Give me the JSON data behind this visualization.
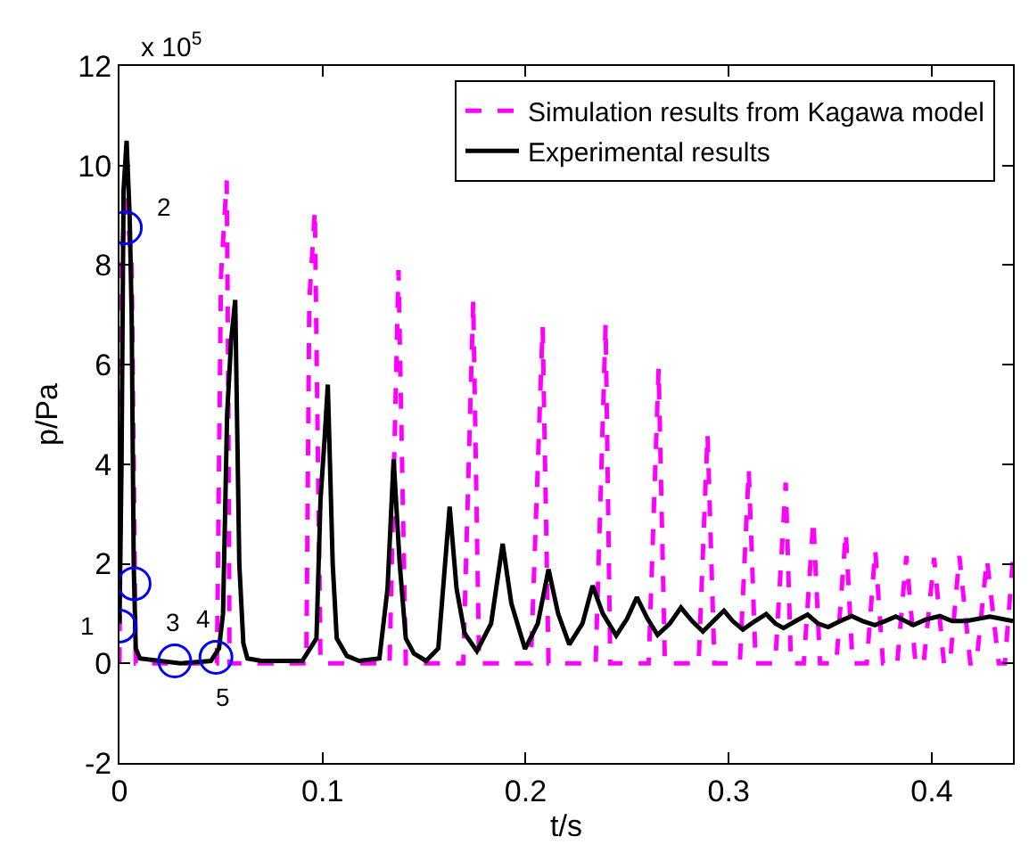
{
  "chart_data": {
    "type": "line",
    "xlabel": "t/s",
    "ylabel": "p/Pa",
    "xlim": [
      0,
      0.44
    ],
    "xticks": [
      0,
      0.1,
      0.2,
      0.3,
      0.4
    ],
    "ylim": [
      -2,
      12
    ],
    "yticks": [
      -2,
      0,
      2,
      4,
      6,
      8,
      10,
      12
    ],
    "grid": false,
    "legend": "top right",
    "marker": "none",
    "annotations": [
      "x 10$^{5}$",
      {
        "text": "1",
        "x": 0,
        "y": 0.75
      },
      {
        "text": "2",
        "x": 0.0029,
        "y": 8.75
      },
      {
        "text": "3",
        "x": 0.0072,
        "y": 1.6
      },
      {
        "text": "4",
        "x": 0.0272,
        "y": 0.05
      },
      {
        "text": "5",
        "x": 0.0475,
        "y": 0.12
      }
    ],
    "series": [
      {
        "name": "Simulation results from Kagawa model",
        "color": "#ff00ff",
        "line_style": "dashed",
        "x": [
          0,
          0.001,
          0.003,
          0.006,
          0.008,
          0.048,
          0.05,
          0.0528,
          0.0535,
          0.0542,
          0.092,
          0.0935,
          0.0962,
          0.099,
          0.133,
          0.1374,
          0.141,
          0.1693,
          0.1742,
          0.1771,
          0.2026,
          0.2084,
          0.2113,
          0.2345,
          0.2394,
          0.2417,
          0.2606,
          0.2655,
          0.2686,
          0.2852,
          0.2896,
          0.293,
          0.3055,
          0.3099,
          0.3133,
          0.3229,
          0.3281,
          0.3307,
          0.337,
          0.3417,
          0.345,
          0.353,
          0.3577,
          0.361,
          0.368,
          0.3722,
          0.376,
          0.383,
          0.3875,
          0.392,
          0.396,
          0.4012,
          0.406,
          0.409,
          0.4136,
          0.419,
          0.422,
          0.4272,
          0.433,
          0.436,
          0.44
        ],
        "values": [
          0,
          8,
          9.5,
          8,
          0,
          0,
          7.8,
          9.7,
          6,
          0,
          0,
          7.3,
          9.1,
          0,
          0,
          7.9,
          0,
          0,
          7.3,
          0,
          0,
          6.76,
          0,
          0,
          6.82,
          0,
          0,
          5.93,
          0,
          0,
          4.61,
          0,
          0,
          3.9,
          0,
          0,
          3.63,
          0,
          0,
          2.88,
          0,
          0,
          2.64,
          0,
          0,
          2.28,
          0,
          0,
          2.16,
          0,
          0,
          2.12,
          0,
          0,
          2.16,
          0,
          0,
          2.09,
          0,
          0,
          2.1
        ]
      },
      {
        "name": "Experimental results",
        "color": "#000000",
        "line_style": "solid",
        "x": [
          0,
          0.001,
          0.002,
          0.0035,
          0.005,
          0.006,
          0.007,
          0.008,
          0.01,
          0.03,
          0.045,
          0.049,
          0.051,
          0.053,
          0.055,
          0.057,
          0.059,
          0.061,
          0.063,
          0.07,
          0.09,
          0.097,
          0.099,
          0.101,
          0.1026,
          0.105,
          0.107,
          0.112,
          0.118,
          0.128,
          0.132,
          0.135,
          0.138,
          0.141,
          0.145,
          0.151,
          0.157,
          0.1626,
          0.166,
          0.17,
          0.176,
          0.183,
          0.1887,
          0.193,
          0.1997,
          0.206,
          0.2113,
          0.216,
          0.2215,
          0.228,
          0.233,
          0.238,
          0.2446,
          0.25,
          0.2548,
          0.26,
          0.265,
          0.271,
          0.2765,
          0.282,
          0.2873,
          0.2925,
          0.2977,
          0.302,
          0.307,
          0.313,
          0.3185,
          0.323,
          0.327,
          0.333,
          0.3389,
          0.344,
          0.349,
          0.355,
          0.3606,
          0.366,
          0.372,
          0.377,
          0.3823,
          0.387,
          0.391,
          0.397,
          0.404,
          0.41,
          0.417,
          0.4287,
          0.44
        ],
        "values": [
          0.8,
          4,
          9.5,
          10.5,
          9,
          7,
          2,
          0.3,
          0.1,
          0,
          0.05,
          0.3,
          1,
          5,
          6.5,
          7.3,
          2,
          0.4,
          0.1,
          0.05,
          0.05,
          0.5,
          3.3,
          4.5,
          5.6,
          2,
          0.5,
          0.15,
          0.05,
          0.1,
          1.5,
          4.1,
          2,
          0.5,
          0.2,
          0.05,
          0.3,
          3.15,
          1.5,
          0.6,
          0.25,
          0.8,
          2.4,
          1.2,
          0.29,
          0.8,
          1.89,
          1.0,
          0.38,
          0.8,
          1.56,
          1.0,
          0.56,
          0.9,
          1.33,
          0.9,
          0.57,
          0.8,
          1.12,
          0.85,
          0.64,
          0.85,
          1.06,
          0.85,
          0.68,
          0.85,
          0.99,
          0.8,
          0.71,
          0.85,
          0.98,
          0.8,
          0.73,
          0.85,
          0.95,
          0.85,
          0.77,
          0.85,
          0.94,
          0.85,
          0.77,
          0.88,
          0.95,
          0.85,
          0.85,
          0.94,
          0.85
        ]
      }
    ]
  }
}
